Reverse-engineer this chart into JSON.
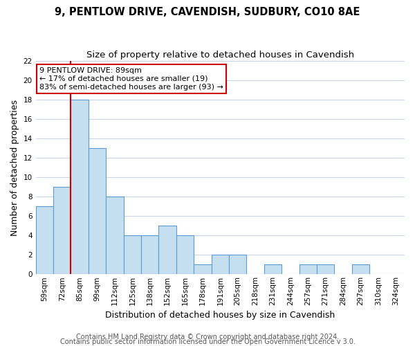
{
  "title": "9, PENTLOW DRIVE, CAVENDISH, SUDBURY, CO10 8AE",
  "subtitle": "Size of property relative to detached houses in Cavendish",
  "xlabel": "Distribution of detached houses by size in Cavendish",
  "ylabel": "Number of detached properties",
  "bar_labels": [
    "59sqm",
    "72sqm",
    "85sqm",
    "99sqm",
    "112sqm",
    "125sqm",
    "138sqm",
    "152sqm",
    "165sqm",
    "178sqm",
    "191sqm",
    "205sqm",
    "218sqm",
    "231sqm",
    "244sqm",
    "257sqm",
    "271sqm",
    "284sqm",
    "297sqm",
    "310sqm",
    "324sqm"
  ],
  "bar_values": [
    7,
    9,
    18,
    13,
    8,
    4,
    4,
    5,
    4,
    1,
    2,
    2,
    0,
    1,
    0,
    1,
    1,
    0,
    1,
    0,
    0
  ],
  "bar_color": "#c5dff0",
  "bar_edge_color": "#5b9bd5",
  "property_line_bin": 2,
  "annotation_title": "9 PENTLOW DRIVE: 89sqm",
  "annotation_line1": "← 17% of detached houses are smaller (19)",
  "annotation_line2": "83% of semi-detached houses are larger (93) →",
  "annotation_box_color": "#ffffff",
  "annotation_box_edge": "#cc0000",
  "vline_color": "#cc0000",
  "ylim": [
    0,
    22
  ],
  "yticks": [
    0,
    2,
    4,
    6,
    8,
    10,
    12,
    14,
    16,
    18,
    20,
    22
  ],
  "footer_line1": "Contains HM Land Registry data © Crown copyright and database right 2024.",
  "footer_line2": "Contains public sector information licensed under the Open Government Licence v 3.0.",
  "background_color": "#ffffff",
  "grid_color": "#c8d4e8",
  "title_fontsize": 10.5,
  "subtitle_fontsize": 9.5,
  "axis_label_fontsize": 9,
  "tick_fontsize": 7.5,
  "annotation_fontsize": 8,
  "footer_fontsize": 7
}
